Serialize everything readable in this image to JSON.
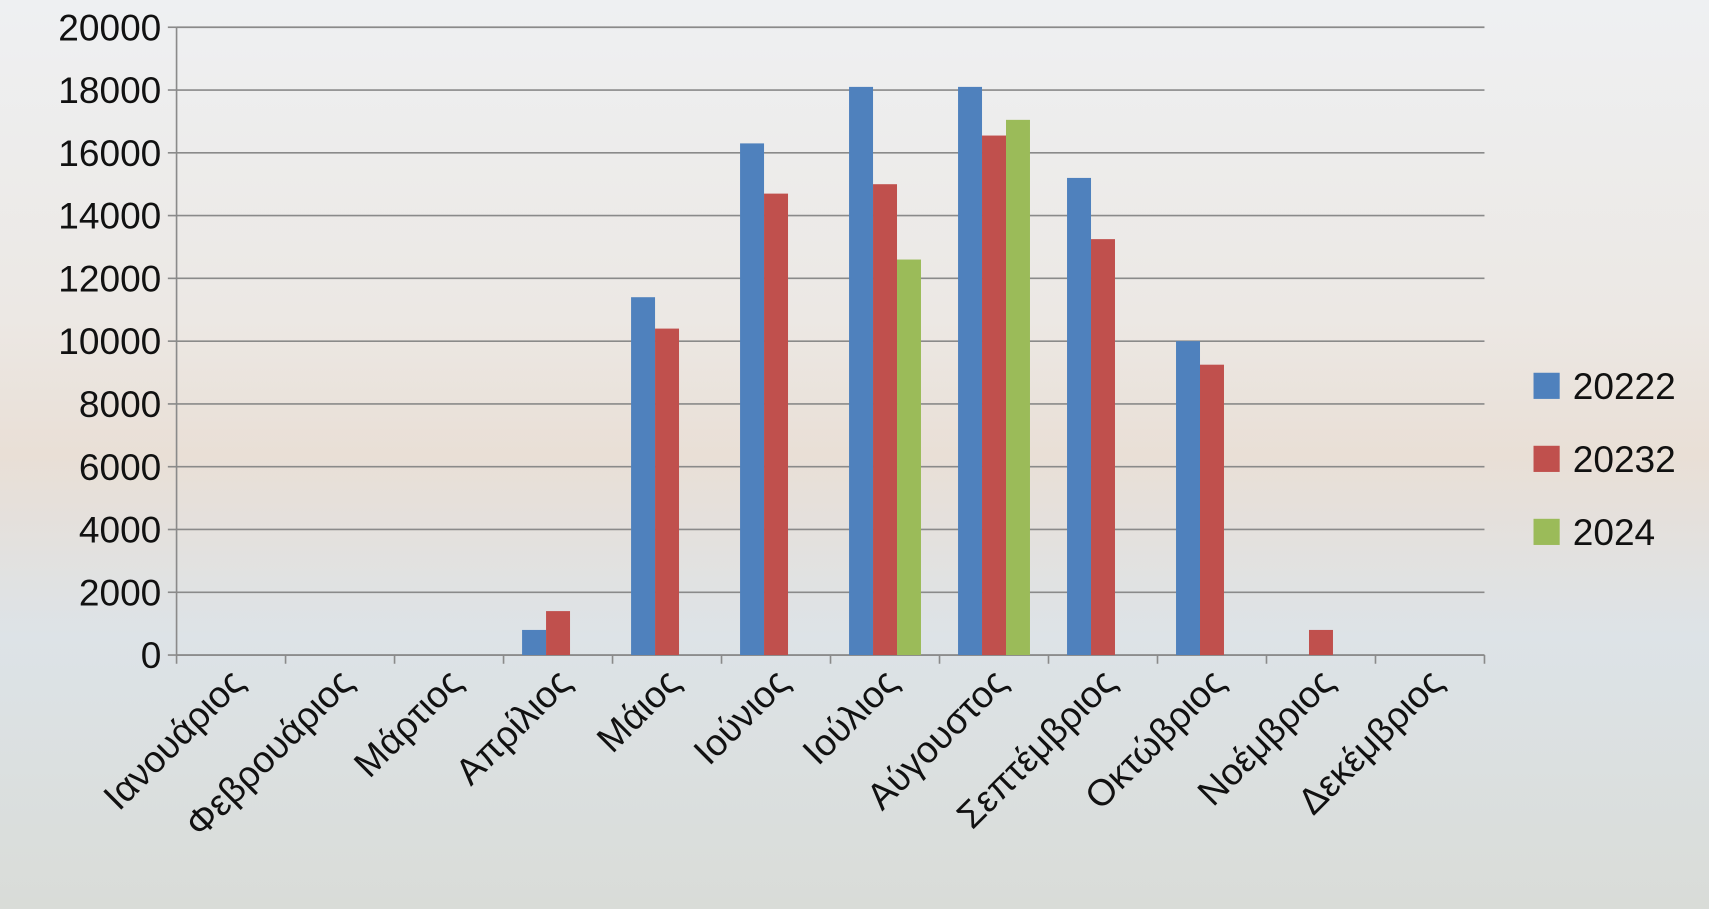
{
  "chart_data": {
    "type": "bar",
    "categories": [
      "Ιανουάριος",
      "Φεβρουάριος",
      "Μάρτιος",
      "Απρίλιος",
      "Μάιος",
      "Ιούνιος",
      "Ιούλιος",
      "Αύγουστος",
      "Σεπτέμβριος",
      "Οκτώβριος",
      "Νοέμβριος",
      "Δεκέμβριος"
    ],
    "series": [
      {
        "name": "20222",
        "color": "#4f81bd",
        "values": [
          null,
          null,
          null,
          800,
          11400,
          16300,
          18100,
          18100,
          15200,
          10000,
          null,
          null
        ]
      },
      {
        "name": "20232",
        "color": "#c0504d",
        "values": [
          null,
          null,
          null,
          1400,
          10400,
          14700,
          15000,
          16550,
          13250,
          9250,
          800,
          null
        ]
      },
      {
        "name": "2024",
        "color": "#9bbb59",
        "values": [
          null,
          null,
          null,
          null,
          null,
          null,
          12600,
          17050,
          null,
          null,
          null,
          null
        ]
      }
    ],
    "ylim": [
      0,
      20000
    ],
    "yticks": [
      0,
      2000,
      4000,
      6000,
      8000,
      10000,
      12000,
      14000,
      16000,
      18000,
      20000
    ],
    "grid": true,
    "legend": "right"
  }
}
